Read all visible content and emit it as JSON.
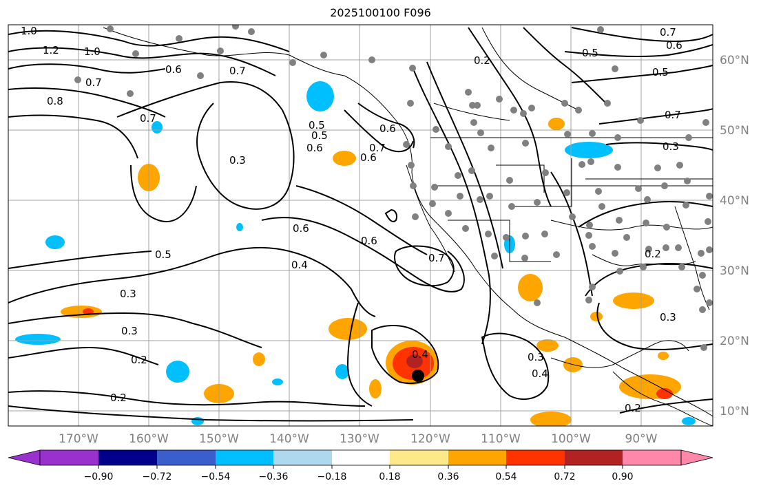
{
  "title": "2025100100 F096",
  "longitude_labels": [
    "170°W",
    "160°W",
    "150°W",
    "140°W",
    "130°W",
    "120°W",
    "110°W",
    "100°W",
    "90°W"
  ],
  "latitude_labels": [
    "60°N",
    "50°N",
    "40°N",
    "30°N",
    "20°N",
    "10°N"
  ],
  "colorbar": {
    "ticks": [
      "−0.90",
      "−0.72",
      "−0.54",
      "−0.36",
      "−0.18",
      "0.18",
      "0.36",
      "0.54",
      "0.72",
      "0.90"
    ],
    "colors": [
      "#9932cc",
      "#00008b",
      "#3a5fcd",
      "#00bfff",
      "#add8f0",
      "#ffffff",
      "#ffe88a",
      "#ffa500",
      "#ff3300",
      "#b22222",
      "#ff88aa"
    ]
  },
  "contour_labels": [
    "1.0",
    "1.2",
    "1.0",
    "0.8",
    "0.7",
    "0.6",
    "0.7",
    "0.7",
    "0.6",
    "0.5",
    "0.6",
    "0.3",
    "0.2",
    "0.5",
    "0.6",
    "0.7",
    "0.5",
    "0.7",
    "0.3",
    "0.6",
    "0.4",
    "0.6",
    "0.7",
    "0.5",
    "0.3",
    "0.3",
    "0.2",
    "0.2",
    "0.4",
    "0.3",
    "0.4",
    "0.2",
    "0.3",
    "0.2",
    "0.6",
    "0.5",
    "0.7"
  ],
  "legend_colors": {
    "land_outline": "#000000",
    "grid": "#808080",
    "station_dot": "#808080",
    "storm_center": "#000000"
  }
}
